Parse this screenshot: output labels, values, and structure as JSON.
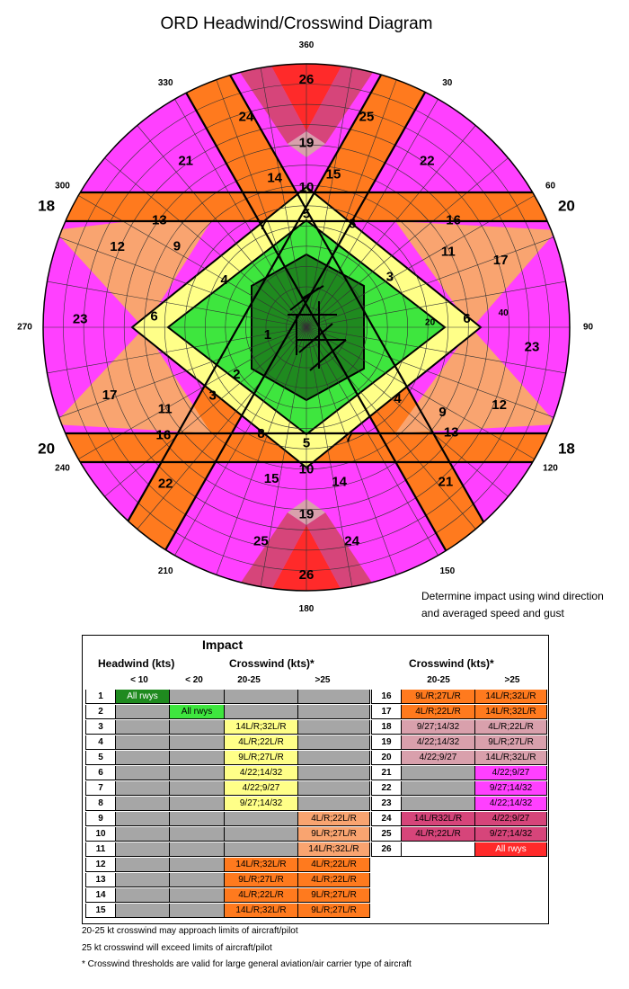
{
  "title": "ORD Headwind/Crosswind Diagram",
  "compass": {
    "degrees": [
      {
        "label": "360",
        "angle": 0
      },
      {
        "label": "30",
        "angle": 30
      },
      {
        "label": "60",
        "angle": 60
      },
      {
        "label": "90",
        "angle": 90
      },
      {
        "label": "120",
        "angle": 120
      },
      {
        "label": "150",
        "angle": 150
      },
      {
        "label": "180",
        "angle": 180
      },
      {
        "label": "210",
        "angle": 210
      },
      {
        "label": "240",
        "angle": 240
      },
      {
        "label": "270",
        "angle": 270
      },
      {
        "label": "300",
        "angle": 300
      },
      {
        "label": "330",
        "angle": 330
      }
    ],
    "runway_ends": [
      {
        "label": "18",
        "angle": 295
      },
      {
        "label": "20",
        "angle": 65
      },
      {
        "label": "20",
        "angle": 245
      },
      {
        "label": "18",
        "angle": 115
      }
    ],
    "ring_labels": [
      {
        "label": "20",
        "angle": 88,
        "r": 0.47
      },
      {
        "label": "40",
        "angle": 86,
        "r": 0.75
      }
    ]
  },
  "zones": [
    {
      "label": "26",
      "angle": 0,
      "r": 0.94
    },
    {
      "label": "24",
      "angle": 344,
      "r": 0.83
    },
    {
      "label": "25",
      "angle": 16,
      "r": 0.83
    },
    {
      "label": "19",
      "angle": 0,
      "r": 0.7
    },
    {
      "label": "14",
      "angle": 348,
      "r": 0.58
    },
    {
      "label": "15",
      "angle": 10,
      "r": 0.59
    },
    {
      "label": "10",
      "angle": 0,
      "r": 0.53
    },
    {
      "label": "5",
      "angle": 0,
      "r": 0.43
    },
    {
      "label": "7",
      "angle": 337,
      "r": 0.42
    },
    {
      "label": "8",
      "angle": 24,
      "r": 0.43
    },
    {
      "label": "21",
      "angle": 324,
      "r": 0.78
    },
    {
      "label": "22",
      "angle": 36,
      "r": 0.78
    },
    {
      "label": "13",
      "angle": 306,
      "r": 0.69
    },
    {
      "label": "16",
      "angle": 54,
      "r": 0.69
    },
    {
      "label": "9",
      "angle": 302,
      "r": 0.58
    },
    {
      "label": "4",
      "angle": 300,
      "r": 0.36
    },
    {
      "label": "3",
      "angle": 59,
      "r": 0.37
    },
    {
      "label": "11",
      "angle": 62,
      "r": 0.61
    },
    {
      "label": "12",
      "angle": 293,
      "r": 0.78
    },
    {
      "label": "17",
      "angle": 71,
      "r": 0.78
    },
    {
      "label": "6",
      "angle": 274,
      "r": 0.58
    },
    {
      "label": "6",
      "angle": 87,
      "r": 0.61
    },
    {
      "label": "23",
      "angle": 272,
      "r": 0.86
    },
    {
      "label": "23",
      "angle": 95,
      "r": 0.86
    },
    {
      "label": "1",
      "angle": 259,
      "r": 0.15
    },
    {
      "label": "2",
      "angle": 236,
      "r": 0.32
    },
    {
      "label": "3",
      "angle": 234,
      "r": 0.44
    },
    {
      "label": "17",
      "angle": 251,
      "r": 0.79
    },
    {
      "label": "11",
      "angle": 240,
      "r": 0.62
    },
    {
      "label": "12",
      "angle": 112,
      "r": 0.79
    },
    {
      "label": "4",
      "angle": 128,
      "r": 0.44
    },
    {
      "label": "9",
      "angle": 122,
      "r": 0.61
    },
    {
      "label": "16",
      "angle": 233,
      "r": 0.68
    },
    {
      "label": "13",
      "angle": 126,
      "r": 0.68
    },
    {
      "label": "8",
      "angle": 203,
      "r": 0.44
    },
    {
      "label": "5",
      "angle": 180,
      "r": 0.44
    },
    {
      "label": "7",
      "angle": 159,
      "r": 0.45
    },
    {
      "label": "15",
      "angle": 193,
      "r": 0.59
    },
    {
      "label": "10",
      "angle": 180,
      "r": 0.54
    },
    {
      "label": "14",
      "angle": 168,
      "r": 0.6
    },
    {
      "label": "19",
      "angle": 180,
      "r": 0.71
    },
    {
      "label": "25",
      "angle": 192,
      "r": 0.83
    },
    {
      "label": "24",
      "angle": 168,
      "r": 0.83
    },
    {
      "label": "26",
      "angle": 180,
      "r": 0.94
    },
    {
      "label": "22",
      "angle": 222,
      "r": 0.8
    },
    {
      "label": "21",
      "angle": 138,
      "r": 0.79
    }
  ],
  "colors": {
    "red": "#ff2a2a",
    "crimson": "#d6457a",
    "pinklight": "#d9a0ac",
    "magenta": "#ff40ff",
    "orange": "#ff7a1e",
    "salmon": "#f9a470",
    "yellow": "#ffff88",
    "green": "#3ee63e",
    "darkgreen": "#1f8a1f",
    "grey": "#a6a6a6"
  },
  "note": [
    "Determine impact using wind direction",
    "and averaged speed and gust"
  ],
  "table": {
    "title": "Impact",
    "headwind": "Headwind (kts)",
    "crosswind": "Crosswind (kts)*",
    "crosswind2": "Crosswind (kts)*",
    "sub": [
      "< 10",
      "< 20",
      "20-25",
      ">25"
    ],
    "sub2": [
      "20-25",
      ">25"
    ],
    "left_rows": [
      {
        "n": "1",
        "c": [
          "All rwys",
          "",
          "",
          ""
        ],
        "k": [
          "darkgreen",
          "grey",
          "grey",
          "grey"
        ]
      },
      {
        "n": "2",
        "c": [
          "",
          "All rwys",
          "",
          ""
        ],
        "k": [
          "grey",
          "green",
          "grey",
          "grey"
        ]
      },
      {
        "n": "3",
        "c": [
          "",
          "",
          "14L/R;32L/R",
          ""
        ],
        "k": [
          "grey",
          "grey",
          "yellow",
          "grey"
        ]
      },
      {
        "n": "4",
        "c": [
          "",
          "",
          "4L/R;22L/R",
          ""
        ],
        "k": [
          "grey",
          "grey",
          "yellow",
          "grey"
        ]
      },
      {
        "n": "5",
        "c": [
          "",
          "",
          "9L/R;27L/R",
          ""
        ],
        "k": [
          "grey",
          "grey",
          "yellow",
          "grey"
        ]
      },
      {
        "n": "6",
        "c": [
          "",
          "",
          "4/22;14/32",
          ""
        ],
        "k": [
          "grey",
          "grey",
          "yellow",
          "grey"
        ]
      },
      {
        "n": "7",
        "c": [
          "",
          "",
          "4/22;9/27",
          ""
        ],
        "k": [
          "grey",
          "grey",
          "yellow",
          "grey"
        ]
      },
      {
        "n": "8",
        "c": [
          "",
          "",
          "9/27;14/32",
          ""
        ],
        "k": [
          "grey",
          "grey",
          "yellow",
          "grey"
        ]
      },
      {
        "n": "9",
        "c": [
          "",
          "",
          "",
          "4L/R;22L/R"
        ],
        "k": [
          "grey",
          "grey",
          "grey",
          "salmon"
        ]
      },
      {
        "n": "10",
        "c": [
          "",
          "",
          "",
          "9L/R;27L/R"
        ],
        "k": [
          "grey",
          "grey",
          "grey",
          "salmon"
        ]
      },
      {
        "n": "11",
        "c": [
          "",
          "",
          "",
          "14L/R;32L/R"
        ],
        "k": [
          "grey",
          "grey",
          "grey",
          "salmon"
        ]
      },
      {
        "n": "12",
        "c": [
          "",
          "",
          "14L/R;32L/R",
          "4L/R;22L/R"
        ],
        "k": [
          "grey",
          "grey",
          "orange",
          "orange"
        ]
      },
      {
        "n": "13",
        "c": [
          "",
          "",
          "9L/R;27L/R",
          "4L/R;22L/R"
        ],
        "k": [
          "grey",
          "grey",
          "orange",
          "orange"
        ]
      },
      {
        "n": "14",
        "c": [
          "",
          "",
          "4L/R;22L/R",
          "9L/R;27L/R"
        ],
        "k": [
          "grey",
          "grey",
          "orange",
          "orange"
        ]
      },
      {
        "n": "15",
        "c": [
          "",
          "",
          "14L/R;32L/R",
          "9L/R;27L/R"
        ],
        "k": [
          "grey",
          "grey",
          "orange",
          "orange"
        ]
      }
    ],
    "right_rows": [
      {
        "n": "16",
        "c": [
          "9L/R;27L/R",
          "14L/R;32L/R"
        ],
        "k": [
          "orange",
          "orange"
        ]
      },
      {
        "n": "17",
        "c": [
          "4L/R;22L/R",
          "14L/R;32L/R"
        ],
        "k": [
          "orange",
          "orange"
        ]
      },
      {
        "n": "18",
        "c": [
          "9/27;14/32",
          "4L/R;22L/R"
        ],
        "k": [
          "pinklight",
          "pinklight"
        ]
      },
      {
        "n": "19",
        "c": [
          "4/22;14/32",
          "9L/R;27L/R"
        ],
        "k": [
          "pinklight",
          "pinklight"
        ]
      },
      {
        "n": "20",
        "c": [
          "4/22;9/27",
          "14L/R;32L/R"
        ],
        "k": [
          "pinklight",
          "pinklight"
        ]
      },
      {
        "n": "21",
        "c": [
          "",
          "4/22;9/27"
        ],
        "k": [
          "grey",
          "magenta"
        ]
      },
      {
        "n": "22",
        "c": [
          "",
          "9/27;14/32"
        ],
        "k": [
          "grey",
          "magenta"
        ]
      },
      {
        "n": "23",
        "c": [
          "",
          "4/22;14/32"
        ],
        "k": [
          "grey",
          "magenta"
        ]
      },
      {
        "n": "24",
        "c": [
          "14L/R32L/R",
          "4/22;9/27"
        ],
        "k": [
          "crimson",
          "crimson"
        ]
      },
      {
        "n": "25",
        "c": [
          "4L/R;22L/R",
          "9/27;14/32"
        ],
        "k": [
          "crimson",
          "crimson"
        ]
      },
      {
        "n": "26",
        "c": [
          "",
          "All rwys"
        ],
        "k": [
          "white",
          "red"
        ]
      }
    ]
  },
  "footnotes": [
    "20-25 kt crosswind may approach limits of aircraft/pilot",
    "25 kt crosswind will exceed limits of aircraft/pilot",
    "* Crosswind thresholds are valid for large general aviation/air carrier type of aircraft"
  ]
}
